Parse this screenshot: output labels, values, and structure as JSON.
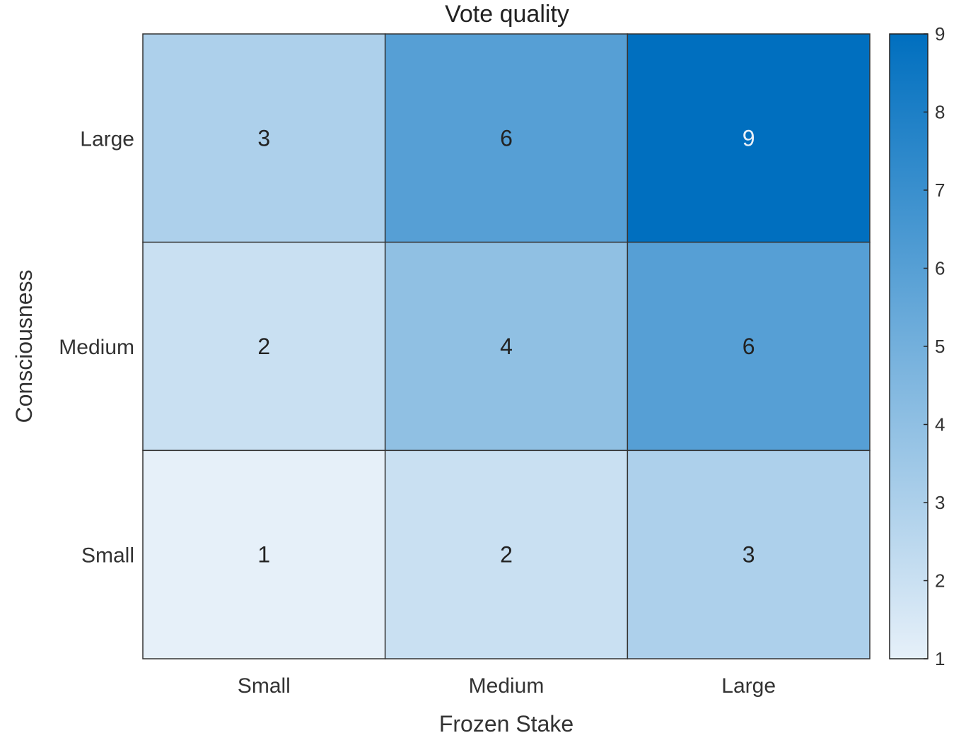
{
  "chart_data": {
    "type": "heatmap",
    "title": "Vote quality",
    "xlabel": "Frozen Stake",
    "ylabel": "Consciousness",
    "x_categories": [
      "Small",
      "Medium",
      "Large"
    ],
    "y_categories_top_to_bottom": [
      "Large",
      "Medium",
      "Small"
    ],
    "values_top_to_bottom": [
      [
        3,
        6,
        9
      ],
      [
        2,
        4,
        6
      ],
      [
        1,
        2,
        3
      ]
    ],
    "colorbar": {
      "min": 1,
      "max": 9,
      "ticks": [
        1,
        2,
        3,
        4,
        5,
        6,
        7,
        8,
        9
      ]
    },
    "colors": {
      "low": "#e6f0f9",
      "high": "#006fbf",
      "grid": "#333333",
      "text_dark": "#222222",
      "text_light": "#e8f0f8"
    }
  }
}
